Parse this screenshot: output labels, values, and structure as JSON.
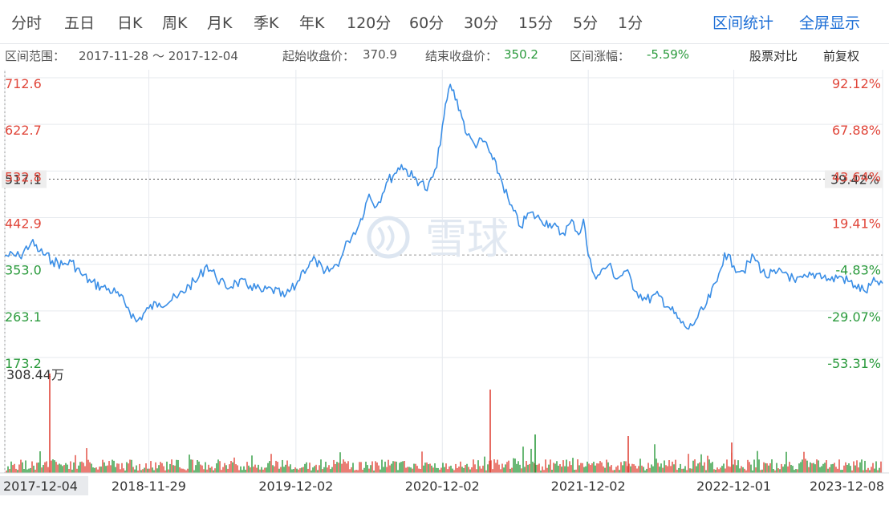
{
  "tabs": [
    "分时",
    "五日",
    "日K",
    "周K",
    "月K",
    "季K",
    "年K",
    "120分",
    "60分",
    "30分",
    "15分",
    "5分",
    "1分"
  ],
  "actions": {
    "range_stats": "区间统计",
    "fullscreen": "全屏显示"
  },
  "info": {
    "range_label": "区间范围：",
    "range_value": "2017-11-28 ～ 2017-12-04",
    "start_label": "起始收盘价：",
    "start_value": "370.9",
    "end_label": "结束收盘价：",
    "end_value": "350.2",
    "change_label": "区间涨幅：",
    "change_value": "-5.59%",
    "compare": "股票对比",
    "adjust": "前复权"
  },
  "watermark": "雪球",
  "colors": {
    "line": "#3a8ee6",
    "up": "#e0463a",
    "down": "#2a9a3c",
    "accent": "#1e6fd6",
    "grid": "#e6e9ee"
  },
  "chart_data": {
    "type": "line",
    "y_ticks_left": [
      "712.6",
      "622.7",
      "532.8",
      "442.9",
      "353.0",
      "263.1",
      "173.2"
    ],
    "y_ticks_right": [
      "92.12%",
      "67.88%",
      "43.64%",
      "19.41%",
      "-4.83%",
      "-29.07%",
      "-53.31%"
    ],
    "ylim": [
      173.2,
      712.6
    ],
    "base_price": 370.9,
    "crosshair": {
      "price": "517.1",
      "pct": "39.42%",
      "price_value": 517.1
    },
    "x_ticks": [
      "2017-12-04",
      "2018-11-29",
      "2019-12-02",
      "2020-12-02",
      "2021-12-02",
      "2022-12-01",
      "2023-12-08"
    ],
    "x_tick_dates": [
      "2017-12-04",
      "2018-11-29",
      "2019-12-02",
      "2020-12-02",
      "2021-12-02",
      "2022-12-01",
      "2023-12-08"
    ],
    "volume_label": "308.44万",
    "volume_max": 3084400,
    "series": [
      {
        "values": [
          [
            "2017-12-04",
            370
          ],
          [
            "2018-01-10",
            368
          ],
          [
            "2018-02-08",
            395
          ],
          [
            "2018-03-01",
            378
          ],
          [
            "2018-04-02",
            360
          ],
          [
            "2018-04-28",
            352
          ],
          [
            "2018-05-20",
            358
          ],
          [
            "2018-06-12",
            335
          ],
          [
            "2018-07-08",
            318
          ],
          [
            "2018-08-02",
            310
          ],
          [
            "2018-09-08",
            298
          ],
          [
            "2018-10-08",
            270
          ],
          [
            "2018-10-29",
            242
          ],
          [
            "2018-11-29",
            268
          ],
          [
            "2018-12-25",
            278
          ],
          [
            "2019-02-08",
            288
          ],
          [
            "2019-03-10",
            312
          ],
          [
            "2019-03-30",
            322
          ],
          [
            "2019-04-23",
            352
          ],
          [
            "2019-05-15",
            330
          ],
          [
            "2019-06-10",
            308
          ],
          [
            "2019-07-06",
            318
          ],
          [
            "2019-08-10",
            312
          ],
          [
            "2019-09-07",
            300
          ],
          [
            "2019-10-03",
            305
          ],
          [
            "2019-11-03",
            290
          ],
          [
            "2019-12-02",
            312
          ],
          [
            "2019-12-20",
            342
          ],
          [
            "2020-01-20",
            362
          ],
          [
            "2020-02-10",
            335
          ],
          [
            "2020-03-03",
            345
          ],
          [
            "2020-03-22",
            362
          ],
          [
            "2020-04-10",
            398
          ],
          [
            "2020-05-08",
            430
          ],
          [
            "2020-06-02",
            488
          ],
          [
            "2020-06-21",
            465
          ],
          [
            "2020-07-15",
            510
          ],
          [
            "2020-08-05",
            528
          ],
          [
            "2020-08-22",
            545
          ],
          [
            "2020-09-20",
            520
          ],
          [
            "2020-10-10",
            512
          ],
          [
            "2020-10-25",
            495
          ],
          [
            "2020-11-18",
            540
          ],
          [
            "2020-12-02",
            620
          ],
          [
            "2020-12-22",
            700
          ],
          [
            "2021-01-16",
            650
          ],
          [
            "2021-02-02",
            602
          ],
          [
            "2021-02-20",
            585
          ],
          [
            "2021-03-18",
            590
          ],
          [
            "2021-04-07",
            555
          ],
          [
            "2021-04-27",
            520
          ],
          [
            "2021-05-20",
            468
          ],
          [
            "2021-06-16",
            425
          ],
          [
            "2021-07-08",
            452
          ],
          [
            "2021-08-03",
            440
          ],
          [
            "2021-08-28",
            432
          ],
          [
            "2021-09-26",
            412
          ],
          [
            "2021-10-26",
            435
          ],
          [
            "2021-11-08",
            410
          ],
          [
            "2021-11-20",
            440
          ],
          [
            "2021-12-02",
            370
          ],
          [
            "2021-12-12",
            340
          ],
          [
            "2021-12-26",
            332
          ],
          [
            "2022-01-22",
            352
          ],
          [
            "2022-02-12",
            325
          ],
          [
            "2022-03-06",
            340
          ],
          [
            "2022-04-02",
            300
          ],
          [
            "2022-04-26",
            285
          ],
          [
            "2022-05-28",
            292
          ],
          [
            "2022-06-22",
            270
          ],
          [
            "2022-07-22",
            240
          ],
          [
            "2022-08-10",
            228
          ],
          [
            "2022-08-28",
            245
          ],
          [
            "2022-09-20",
            270
          ],
          [
            "2022-10-20",
            320
          ],
          [
            "2022-11-08",
            375
          ],
          [
            "2022-12-01",
            350
          ],
          [
            "2022-12-25",
            340
          ],
          [
            "2023-01-20",
            368
          ],
          [
            "2023-02-18",
            330
          ],
          [
            "2023-03-16",
            335
          ],
          [
            "2023-04-10",
            338
          ],
          [
            "2023-05-04",
            318
          ],
          [
            "2023-06-04",
            328
          ],
          [
            "2023-07-04",
            336
          ],
          [
            "2023-07-30",
            322
          ],
          [
            "2023-08-22",
            330
          ],
          [
            "2023-09-30",
            312
          ],
          [
            "2023-10-26",
            300
          ],
          [
            "2023-11-20",
            320
          ],
          [
            "2023-12-08",
            316
          ]
        ]
      }
    ]
  }
}
